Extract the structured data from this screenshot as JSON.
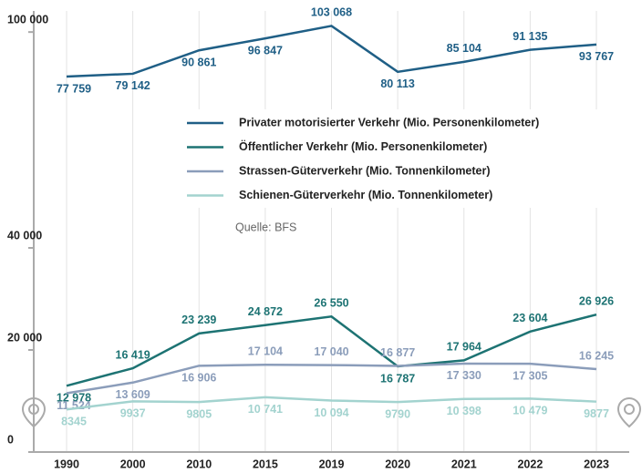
{
  "chart_data": {
    "type": "line",
    "categories": [
      "1990",
      "2000",
      "2010",
      "2015",
      "2019",
      "2020",
      "2021",
      "2022",
      "2023"
    ],
    "series": [
      {
        "name": "Privater motorisierter Verkehr (Mio. Personenkilometer)",
        "color": "#1f5f86",
        "axis": "y2",
        "values": [
          77759,
          79142,
          90861,
          96847,
          103068,
          80113,
          85104,
          91135,
          93767
        ],
        "value_labels": [
          "77 759",
          "79 142",
          "90 861",
          "96 847",
          "103 068",
          "80 113",
          "85 104",
          "91 135",
          "93 767"
        ]
      },
      {
        "name": "Öffentlicher Verkehr (Mio. Personenkilometer)",
        "color": "#1d7373",
        "values": [
          12978,
          16419,
          23239,
          24872,
          26550,
          16787,
          17964,
          23604,
          26926
        ],
        "value_labels": [
          "12 978",
          "16 419",
          "23 239",
          "24 872",
          "26 550",
          "16 787",
          "17 964",
          "23 604",
          "26 926"
        ]
      },
      {
        "name": "Strassen-Güterverkehr (Mio. Tonnenkilometer)",
        "color": "#8b9dba",
        "values": [
          11524,
          13609,
          16906,
          17104,
          17040,
          16877,
          17330,
          17305,
          16245
        ],
        "value_labels": [
          "11 524",
          "13 609",
          "16 906",
          "17 104",
          "17 040",
          "16 877",
          "17 330",
          "17 305",
          "16 245"
        ]
      },
      {
        "name": "Schienen-Güterverkehr (Mio. Tonnenkilometer)",
        "color": "#a3d3cf",
        "values": [
          8345,
          9937,
          9805,
          10741,
          10094,
          9790,
          10398,
          10479,
          9877
        ],
        "value_labels": [
          "8345",
          "9937",
          "9805",
          "10 741",
          "10 094",
          "9790",
          "10 398",
          "10 479",
          "9877"
        ]
      }
    ],
    "ylim": [
      0,
      40000
    ],
    "yticks": [
      0,
      {
        "value": 20000,
        "label": "20 000"
      },
      {
        "value": 40000,
        "label": "40 000"
      }
    ],
    "y2lim": [
      70000,
      106000
    ],
    "y2ticks": [
      {
        "value": 100000,
        "label": "100 000"
      }
    ],
    "source": "Quelle: BFS",
    "grid": true
  }
}
